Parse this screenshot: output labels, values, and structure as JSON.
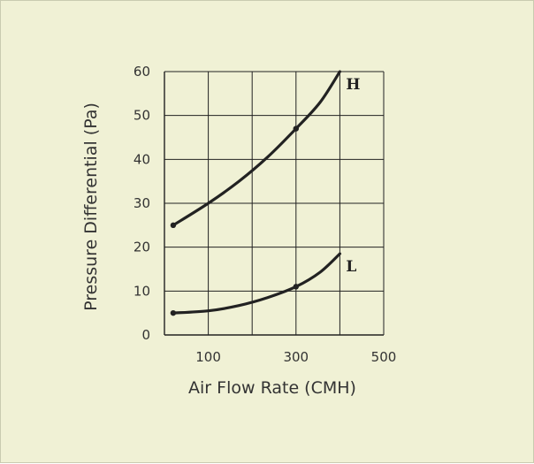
{
  "chart_data": {
    "type": "line",
    "xlabel": "Air Flow Rate (CMH)",
    "ylabel": "Pressure Differential (Pa)",
    "xlim": [
      0,
      500
    ],
    "ylim": [
      0,
      60
    ],
    "x_ticks": [
      100,
      300,
      500
    ],
    "x_tick_labels": [
      "100",
      "300",
      "500"
    ],
    "y_ticks": [
      0,
      10,
      20,
      30,
      40,
      50,
      60
    ],
    "y_tick_labels": [
      "0",
      "10",
      "20",
      "30",
      "40",
      "50",
      "60"
    ],
    "grid": true,
    "series": [
      {
        "name": "H",
        "x": [
          20,
          100,
          170,
          235,
          300,
          355,
          400
        ],
        "y": [
          25,
          30,
          35,
          40.5,
          47,
          53,
          60
        ],
        "markers": [
          20,
          300
        ]
      },
      {
        "name": "L",
        "x": [
          20,
          100,
          170,
          235,
          300,
          355,
          400
        ],
        "y": [
          5,
          5.5,
          6.7,
          8.5,
          11,
          14.3,
          18.5
        ],
        "markers": [
          20,
          300
        ]
      }
    ]
  }
}
